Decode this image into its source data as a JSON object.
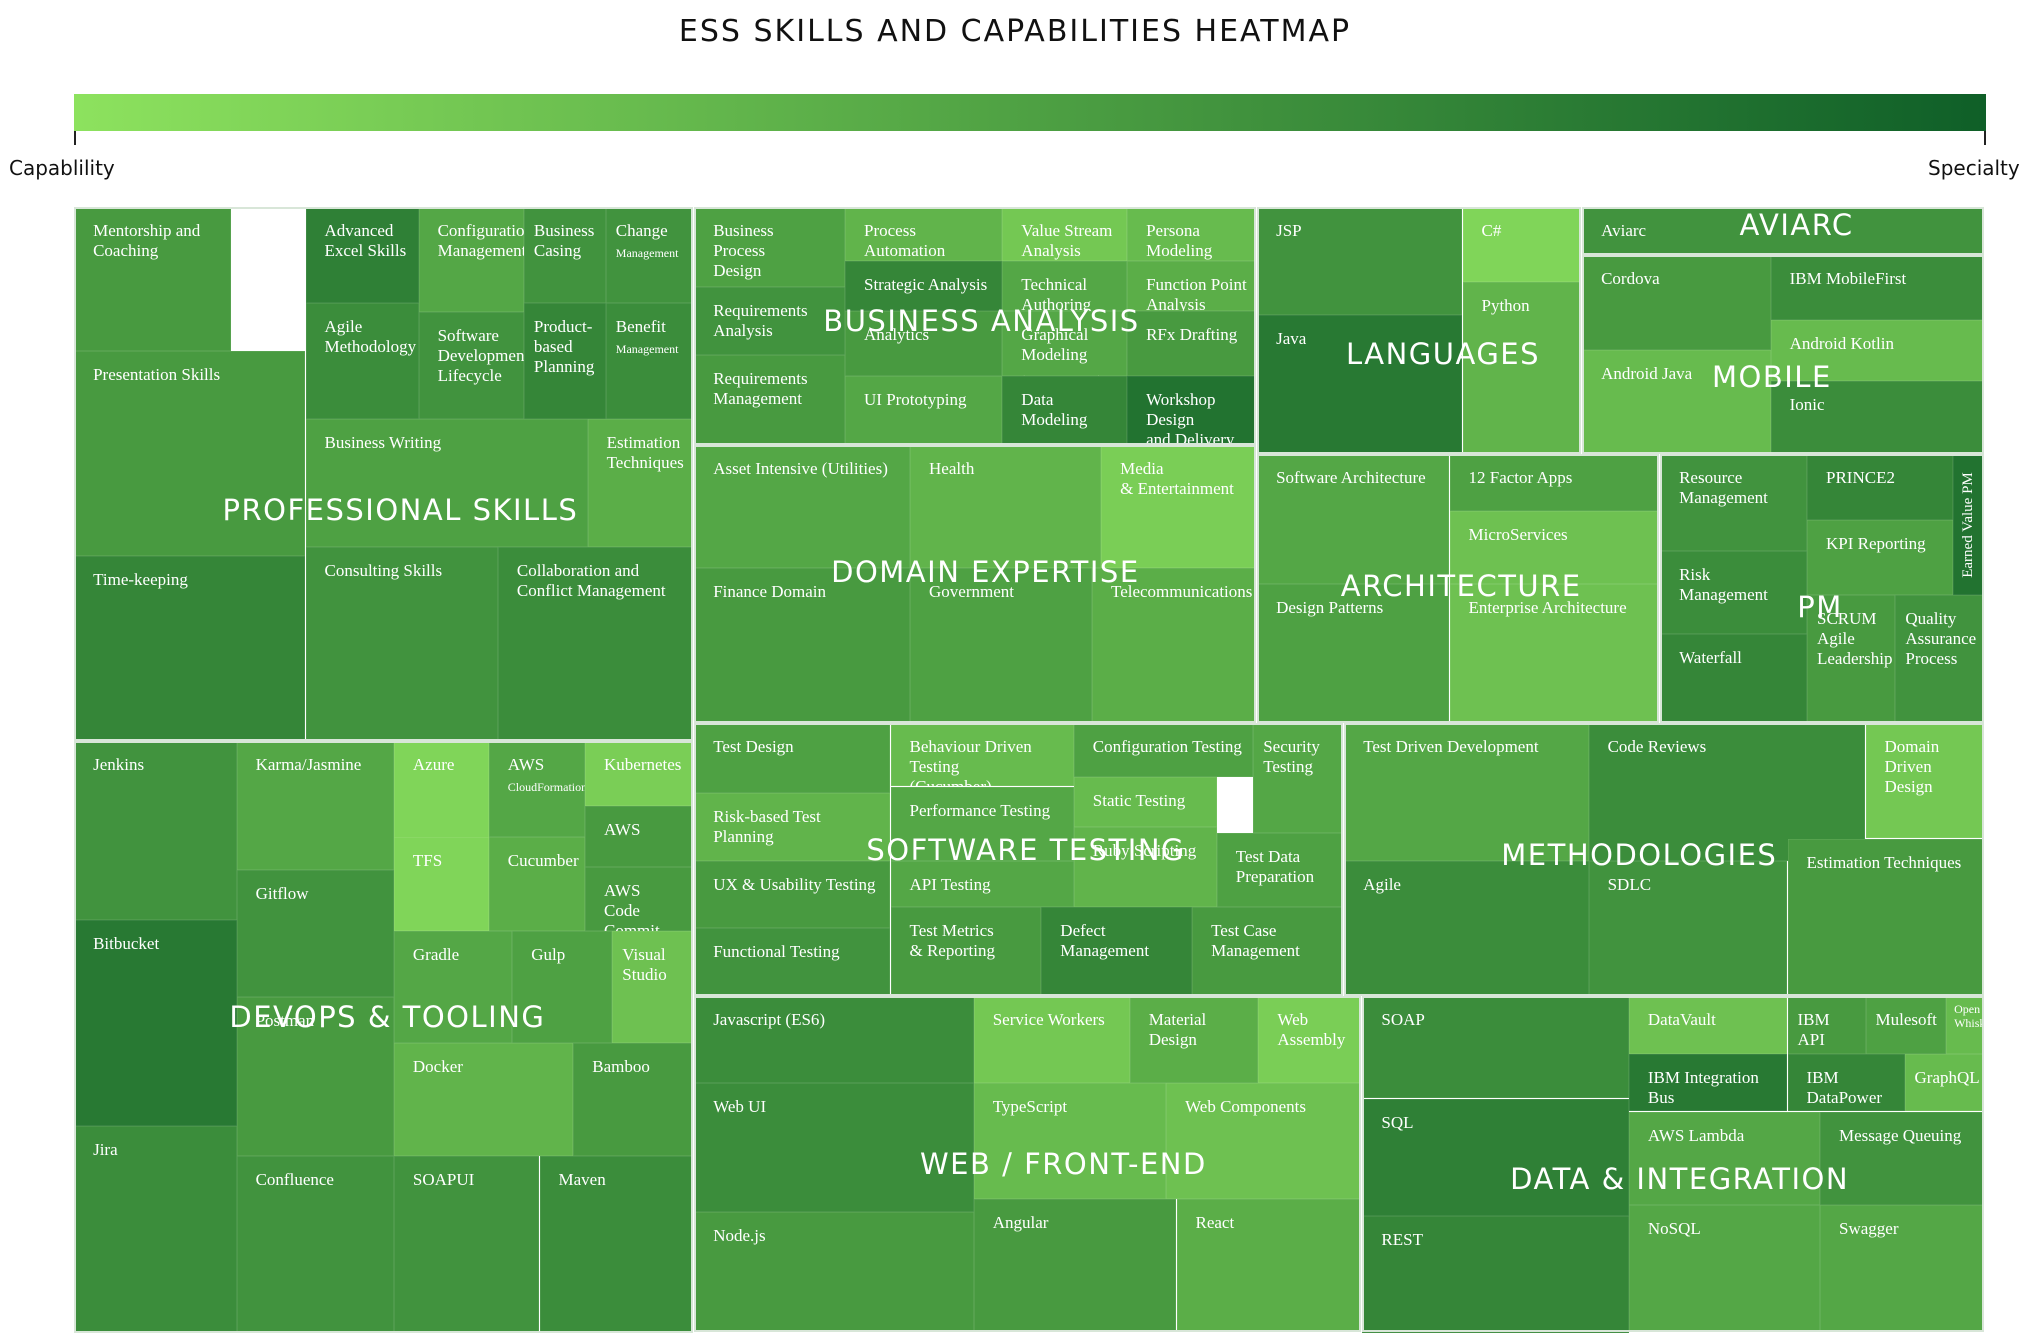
{
  "chart_data": {
    "type": "heatmap",
    "title": "ESS SKILLS AND CAPABILITIES HEATMAP",
    "color_scale": {
      "low_label": "Capablility",
      "high_label": "Specialty",
      "low_color": "#8de25e",
      "high_color": "#0f5f28"
    },
    "groups": [
      {
        "name": "PROFESSIONAL SKILLS",
        "items": [
          {
            "label": "Mentorship and Coaching",
            "value": 0.55
          },
          {
            "label": "Presentation Skills",
            "value": 0.55
          },
          {
            "label": "Time-keeping",
            "value": 0.7
          },
          {
            "label": "Advanced\nExcel Skills",
            "value": 0.75
          },
          {
            "label": "Configuration\nManagement",
            "value": 0.45
          },
          {
            "label": "Business\nCasing",
            "value": 0.6
          },
          {
            "label": "Change\nManagement",
            "value": 0.6
          },
          {
            "label": "Agile\nMethodology",
            "value": 0.65
          },
          {
            "label": "Software\nDevelopment\nLifecycle",
            "value": 0.6
          },
          {
            "label": "Product-\nbased\nPlanning",
            "value": 0.7
          },
          {
            "label": "Benefit\nManagement",
            "value": 0.65
          },
          {
            "label": "Business Writing",
            "value": 0.5
          },
          {
            "label": "Estimation\nTechniques",
            "value": 0.4
          },
          {
            "label": "Consulting Skills",
            "value": 0.6
          },
          {
            "label": "Collaboration and\nConflict Management",
            "value": 0.65
          }
        ]
      },
      {
        "name": "BUSINESS ANALYSIS",
        "items": [
          {
            "label": "Business\nProcess\nDesign",
            "value": 0.5
          },
          {
            "label": "Process Automation",
            "value": 0.35
          },
          {
            "label": "Value Stream\nAnalysis",
            "value": 0.2
          },
          {
            "label": "Persona\nModeling",
            "value": 0.3
          },
          {
            "label": "Requirements\nAnalysis",
            "value": 0.6
          },
          {
            "label": "Strategic Analysis",
            "value": 0.7
          },
          {
            "label": "Technical Authoring\n(API & SDK Documentation)",
            "value": 0.45
          },
          {
            "label": "Function Point\nAnalysis",
            "value": 0.4
          },
          {
            "label": "Analytics",
            "value": 0.55
          },
          {
            "label": "Graphical Modeling\n(UML, ERD, BPM)",
            "value": 0.45
          },
          {
            "label": "RFx Drafting",
            "value": 0.55
          },
          {
            "label": "Requirements\nManagement",
            "value": 0.55
          },
          {
            "label": "UI Prototyping",
            "value": 0.45
          },
          {
            "label": "Data Modeling",
            "value": 0.7
          },
          {
            "label": "Workshop\nDesign\nand Delivery",
            "value": 0.85
          }
        ]
      },
      {
        "name": "LANGUAGES",
        "items": [
          {
            "label": "JSP",
            "value": 0.6
          },
          {
            "label": "C#",
            "value": 0.1
          },
          {
            "label": "Python",
            "value": 0.35
          },
          {
            "label": "Java",
            "value": 0.8
          }
        ]
      },
      {
        "name": "AVIARC",
        "items": [
          {
            "label": "Aviarc",
            "value": 0.6
          }
        ]
      },
      {
        "name": "MOBILE",
        "items": [
          {
            "label": "Cordova",
            "value": 0.55
          },
          {
            "label": "IBM MobileFirst",
            "value": 0.65
          },
          {
            "label": "Android Kotlin",
            "value": 0.3
          },
          {
            "label": "Android Java",
            "value": 0.3
          },
          {
            "label": "Ionic",
            "value": 0.65
          }
        ]
      },
      {
        "name": "DOMAIN EXPERTISE",
        "items": [
          {
            "label": "Asset Intensive (Utilities)",
            "value": 0.45
          },
          {
            "label": "Health",
            "value": 0.35
          },
          {
            "label": "Media\n& Entertainment",
            "value": 0.15
          },
          {
            "label": "Finance Domain",
            "value": 0.55
          },
          {
            "label": "Government",
            "value": 0.5
          },
          {
            "label": "Telecommunications",
            "value": 0.4
          }
        ]
      },
      {
        "name": "ARCHITECTURE",
        "items": [
          {
            "label": "Software Architecture",
            "value": 0.45
          },
          {
            "label": "12 Factor Apps",
            "value": 0.5
          },
          {
            "label": "MicroServices",
            "value": 0.25
          },
          {
            "label": "Design Patterns",
            "value": 0.5
          },
          {
            "label": "Enterprise Architecture",
            "value": 0.25
          }
        ]
      },
      {
        "name": "PM",
        "items": [
          {
            "label": "Resource Management",
            "value": 0.6
          },
          {
            "label": "PRINCE2",
            "value": 0.7
          },
          {
            "label": "Earned Value PM",
            "value": 0.85
          },
          {
            "label": "Risk Management",
            "value": 0.65
          },
          {
            "label": "KPI Reporting",
            "value": 0.5
          },
          {
            "label": "Waterfall",
            "value": 0.7
          },
          {
            "label": "SCRUM\nAgile\nLeadership",
            "value": 0.55
          },
          {
            "label": "Quality\nAssurance\nProcess",
            "value": 0.6
          }
        ]
      },
      {
        "name": "SOFTWARE TESTING",
        "items": [
          {
            "label": "Test Design",
            "value": 0.5
          },
          {
            "label": "Behaviour Driven Testing\n(Cucumber)",
            "value": 0.3
          },
          {
            "label": "Configuration Testing",
            "value": 0.5
          },
          {
            "label": "Security\nTesting",
            "value": 0.45
          },
          {
            "label": "Static Testing",
            "value": 0.3
          },
          {
            "label": "Risk-based Test Planning",
            "value": 0.35
          },
          {
            "label": "Performance Testing",
            "value": 0.45
          },
          {
            "label": "Test Data\nPreparation",
            "value": 0.5
          },
          {
            "label": "UX & Usability Testing",
            "value": 0.55
          },
          {
            "label": "API Testing",
            "value": 0.45
          },
          {
            "label": "Ruby Scripting",
            "value": 0.35
          },
          {
            "label": "Functional Testing",
            "value": 0.6
          },
          {
            "label": "Test Metrics\n& Reporting",
            "value": 0.55
          },
          {
            "label": "Defect\nManagement",
            "value": 0.7
          },
          {
            "label": "Test Case\nManagement",
            "value": 0.55
          }
        ]
      },
      {
        "name": "METHODOLOGIES",
        "items": [
          {
            "label": "Test Driven Development",
            "value": 0.45
          },
          {
            "label": "Code Reviews",
            "value": 0.65
          },
          {
            "label": "Domain\nDriven\nDesign",
            "value": 0.2
          },
          {
            "label": "Agile",
            "value": 0.65
          },
          {
            "label": "SDLC",
            "value": 0.6
          },
          {
            "label": "Estimation Techniques",
            "value": 0.55
          }
        ]
      },
      {
        "name": "DEVOPS & TOOLING",
        "items": [
          {
            "label": "Jenkins",
            "value": 0.6
          },
          {
            "label": "Karma/Jasmine",
            "value": 0.45
          },
          {
            "label": "Azure",
            "value": 0.1
          },
          {
            "label": "AWS\nCloudFormation",
            "value": 0.45
          },
          {
            "label": "Kubernetes",
            "value": 0.15
          },
          {
            "label": "AWS",
            "value": 0.55
          },
          {
            "label": "TFS",
            "value": 0.1
          },
          {
            "label": "Cucumber",
            "value": 0.4
          },
          {
            "label": "AWS\nCode Commit",
            "value": 0.55
          },
          {
            "label": "Bitbucket",
            "value": 0.8
          },
          {
            "label": "Gitflow",
            "value": 0.6
          },
          {
            "label": "Gradle",
            "value": 0.45
          },
          {
            "label": "Gulp",
            "value": 0.5
          },
          {
            "label": "Visual\nStudio",
            "value": 0.25
          },
          {
            "label": "Jira",
            "value": 0.65
          },
          {
            "label": "Postman",
            "value": 0.55
          },
          {
            "label": "Docker",
            "value": 0.35
          },
          {
            "label": "Bamboo",
            "value": 0.55
          },
          {
            "label": "Confluence",
            "value": 0.6
          },
          {
            "label": "SOAPUI",
            "value": 0.6
          },
          {
            "label": "Maven",
            "value": 0.65
          }
        ]
      },
      {
        "name": "WEB / FRONT-END",
        "items": [
          {
            "label": "Javascript (ES6)",
            "value": 0.65
          },
          {
            "label": "Service Workers",
            "value": 0.2
          },
          {
            "label": "Material Design",
            "value": 0.4
          },
          {
            "label": "Web\nAssembly",
            "value": 0.15
          },
          {
            "label": "Web UI",
            "value": 0.65
          },
          {
            "label": "TypeScript",
            "value": 0.3
          },
          {
            "label": "Web Components",
            "value": 0.25
          },
          {
            "label": "Node.js",
            "value": 0.55
          },
          {
            "label": "Angular",
            "value": 0.55
          },
          {
            "label": "React",
            "value": 0.4
          }
        ]
      },
      {
        "name": "DATA & INTEGRATION",
        "items": [
          {
            "label": "SOAP",
            "value": 0.65
          },
          {
            "label": "DataVault",
            "value": 0.25
          },
          {
            "label": "IBM API",
            "value": 0.55
          },
          {
            "label": "Mulesoft",
            "value": 0.5
          },
          {
            "label": "Open\nWhisk",
            "value": 0.3
          },
          {
            "label": "SQL",
            "value": 0.75
          },
          {
            "label": "IBM Integration Bus",
            "value": 0.8
          },
          {
            "label": "IBM DataPower",
            "value": 0.7
          },
          {
            "label": "GraphQL",
            "value": 0.3
          },
          {
            "label": "AWS Lambda",
            "value": 0.45
          },
          {
            "label": "Message Queuing",
            "value": 0.6
          },
          {
            "label": "REST",
            "value": 0.7
          },
          {
            "label": "NoSQL",
            "value": 0.45
          },
          {
            "label": "Swagger",
            "value": 0.45
          }
        ]
      }
    ]
  }
}
